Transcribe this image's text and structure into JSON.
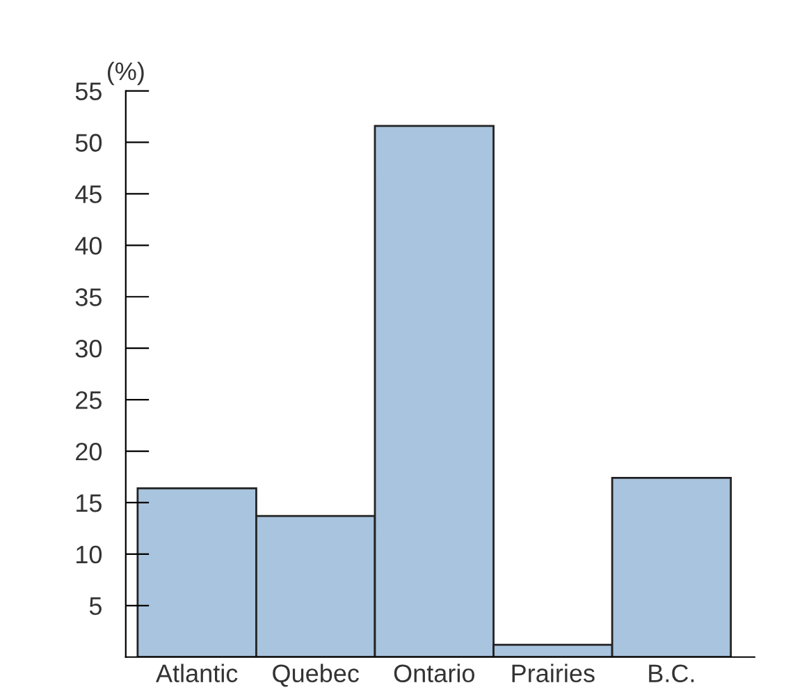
{
  "chart_data": {
    "type": "bar",
    "ylabel": "(%)",
    "categories": [
      "Atlantic",
      "Quebec",
      "Ontario",
      "Prairies",
      "B.C."
    ],
    "values": [
      16.4,
      13.7,
      51.6,
      1.2,
      17.4
    ],
    "color": "#a8c4de",
    "ylim": [
      0,
      55
    ],
    "yticks": [
      5,
      10,
      15,
      20,
      25,
      30,
      35,
      40,
      45,
      50,
      55
    ],
    "grid": false
  }
}
